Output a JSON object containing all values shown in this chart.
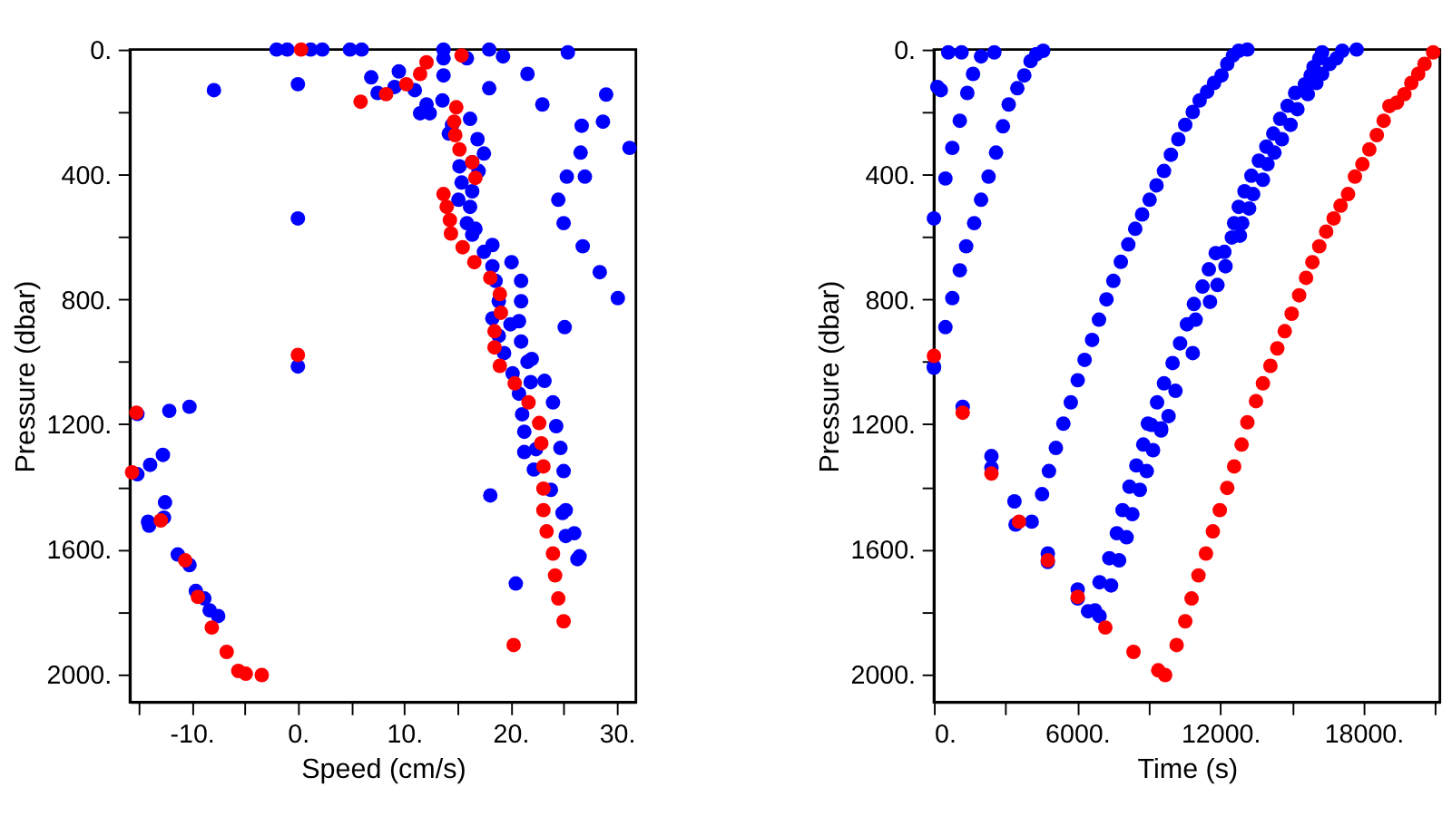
{
  "chart_data": [
    {
      "type": "scatter",
      "xlabel": "Speed (cm/s)",
      "ylabel": "Pressure (dbar)",
      "marker": "circle",
      "grid": false,
      "legend": false,
      "xlim": [
        -15.8,
        31.8
      ],
      "ylim": [
        2090,
        0
      ],
      "xticks": [
        {
          "value": -15,
          "label": null
        },
        {
          "value": -10,
          "label": "-10."
        },
        {
          "value": -5,
          "label": null
        },
        {
          "value": 0,
          "label": "0."
        },
        {
          "value": 5,
          "label": null
        },
        {
          "value": 10,
          "label": "10."
        },
        {
          "value": 15,
          "label": null
        },
        {
          "value": 20,
          "label": "20."
        },
        {
          "value": 25,
          "label": null
        },
        {
          "value": 30,
          "label": "30."
        }
      ],
      "yticks": [
        {
          "value": 0,
          "label": "0."
        },
        {
          "value": 200,
          "label": null
        },
        {
          "value": 400,
          "label": "400."
        },
        {
          "value": 600,
          "label": null
        },
        {
          "value": 800,
          "label": "800."
        },
        {
          "value": 1000,
          "label": null
        },
        {
          "value": 1200,
          "label": "1200."
        },
        {
          "value": 1400,
          "label": null
        },
        {
          "value": 1600,
          "label": "1600."
        },
        {
          "value": 1800,
          "label": null
        },
        {
          "value": 2000,
          "label": "2000."
        }
      ],
      "series": [
        {
          "color": "#0000ff",
          "x": [
            -2.0,
            -1.0,
            1.2,
            2.3,
            4.9,
            6.0,
            13.7,
            13.7,
            15.9,
            18.0,
            19.3,
            25.4,
            21.6,
            23.0,
            18.0,
            -7.9,
            0,
            0,
            0,
            6.9,
            9.5,
            7.5,
            9.1,
            11.0,
            11.5,
            12.4,
            12.1,
            13.7,
            13.6,
            14.5,
            14.2,
            16.2,
            16.9,
            17.5,
            16.4,
            15.2,
            15.4,
            16.4,
            17.0,
            15.1,
            16.2,
            15.9,
            16.7,
            16.4,
            17.5,
            18.3,
            18.3,
            20.1,
            18.6,
            21.0,
            18.9,
            21.0,
            18.3,
            20.8,
            20.0,
            18.9,
            21.0,
            19.4,
            22.0,
            21.6,
            20.2,
            21.9,
            23.2,
            20.8,
            24.0,
            26.7,
            28.7,
            29.0,
            31.2,
            26.6,
            25.3,
            27.0,
            24.5,
            25.0,
            26.8,
            28.4,
            30.1,
            25.1,
            -15.1,
            -12.1,
            -10.2,
            21.1,
            21.3,
            24.3,
            21.3,
            22.4,
            24.7,
            22.2,
            25.0,
            23.8,
            18.1,
            24.9,
            25.2,
            25.2,
            26.0,
            26.3,
            26.5,
            20.5,
            -15.1,
            -13.9,
            -12.7,
            -12.5,
            -12.6,
            -14.1,
            -14.0,
            -11.3,
            -10.2,
            -9.6,
            -8.8,
            -8.3,
            -7.5
          ],
          "values": [
            0,
            0,
            0,
            0,
            0,
            0,
            28,
            0,
            28,
            0,
            22,
            9,
            78,
            176,
            124,
            130,
            111,
            541,
            1015,
            89,
            70,
            139,
            120,
            130,
            204,
            204,
            176,
            83,
            163,
            241,
            269,
            222,
            287,
            333,
            361,
            374,
            426,
            454,
            389,
            481,
            504,
            556,
            574,
            593,
            648,
            626,
            694,
            681,
            741,
            741,
            806,
            806,
            861,
            870,
            880,
            917,
            935,
            972,
            991,
            1000,
            1037,
            1065,
            1061,
            1102,
            1130,
            244,
            231,
            144,
            315,
            330,
            407,
            407,
            481,
            556,
            630,
            713,
            796,
            889,
            1167,
            1157,
            1144,
            1168,
            1224,
            1206,
            1289,
            1280,
            1276,
            1345,
            1350,
            1410,
            1428,
            1484,
            1475,
            1558,
            1549,
            1632,
            1623,
            1710,
            1360,
            1330,
            1298,
            1450,
            1499,
            1512,
            1525,
            1617,
            1651,
            1734,
            1758,
            1796,
            1814
          ]
        },
        {
          "color": "#ff0000",
          "x": [
            0.3,
            15.4,
            12.1,
            11.5,
            10.2,
            8.3,
            5.9,
            14.9,
            14.7,
            14.8,
            15.2,
            16.4,
            16.7,
            13.7,
            14.0,
            14.3,
            14.4,
            15.5,
            16.6,
            18.1,
            19.0,
            19.1,
            18.5,
            18.5,
            19.0,
            20.4,
            21.7,
            0,
            -15.2,
            22.7,
            22.9,
            23.1,
            23.1,
            23.1,
            23.4,
            24.0,
            24.2,
            24.5,
            25.0,
            20.3,
            -15.6,
            -12.9,
            -10.6,
            -9.4,
            -8.1,
            -6.7,
            -5.6,
            -4.9,
            -3.4
          ],
          "values": [
            0,
            19,
            41,
            78,
            111,
            143,
            167,
            185,
            231,
            274,
            320,
            361,
            411,
            463,
            504,
            546,
            589,
            633,
            681,
            731,
            783,
            843,
            902,
            954,
            1013,
            1069,
            1130,
            978,
            1163,
            1196,
            1261,
            1335,
            1406,
            1475,
            1543,
            1614,
            1684,
            1758,
            1831,
            1907,
            1354,
            1508,
            1636,
            1753,
            1851,
            1929,
            1990,
            1999,
            2003
          ]
        }
      ]
    },
    {
      "type": "scatter",
      "xlabel": "Time (s)",
      "ylabel": "Pressure (dbar)",
      "marker": "circle",
      "grid": false,
      "legend": false,
      "xlim": [
        0,
        21200
      ],
      "ylim": [
        2090,
        0
      ],
      "xticks": [
        {
          "value": 0,
          "label": "0."
        },
        {
          "value": 3000,
          "label": null
        },
        {
          "value": 6000,
          "label": "6000."
        },
        {
          "value": 9000,
          "label": null
        },
        {
          "value": 12000,
          "label": "12000."
        },
        {
          "value": 15000,
          "label": null
        },
        {
          "value": 18000,
          "label": "18000."
        },
        {
          "value": 21000,
          "label": null
        }
      ],
      "yticks": [
        {
          "value": 0,
          "label": "0."
        },
        {
          "value": 200,
          "label": null
        },
        {
          "value": 400,
          "label": "400."
        },
        {
          "value": 600,
          "label": null
        },
        {
          "value": 800,
          "label": "800."
        },
        {
          "value": 1000,
          "label": null
        },
        {
          "value": 1200,
          "label": "1200."
        },
        {
          "value": 1400,
          "label": null
        },
        {
          "value": 1600,
          "label": "1600."
        },
        {
          "value": 1800,
          "label": null
        },
        {
          "value": 2000,
          "label": "2000."
        }
      ],
      "series": [
        {
          "color": "#0000ff",
          "x": [
            602,
            1157,
            145,
            289,
            0,
            0,
            0,
            482,
            771,
            1084,
            1398,
            1639,
            1976,
            2530,
            771,
            482,
            1084,
            1350,
            1687,
            1976,
            2290,
            2603,
            2892,
            3133,
            3495,
            3785,
            4049,
            4290,
            4579,
            5423,
            5736,
            6025,
            6314,
            6628,
            6917,
            7230,
            7519,
            7832,
            8145,
            8435,
            8724,
            9037,
            9327,
            9640,
            9929,
            10242,
            10531,
            10845,
            11134,
            11447,
            11737,
            12050,
            12291,
            12532,
            12773,
            13134,
            5110,
            4820,
            4531,
            4097,
            3422,
            3374,
            4772,
            4772,
            6025,
            6025,
            6459,
            6748,
            6941,
            2410,
            2410,
            1205,
            6941,
            7423,
            7350,
            7760,
            7663,
            8073,
            7904,
            8314,
            8194,
            8628,
            8483,
            8917,
            8772,
            9181,
            9110,
            9519,
            9832,
            8965,
            9519,
            9351,
            9640,
            10001,
            10122,
            10314,
            10845,
            10603,
            10966,
            10893,
            11568,
            11255,
            11881,
            11520,
            12218,
            11809,
            12170,
            12483,
            12821,
            12580,
            12917,
            12773,
            13207,
            13014,
            13376,
            13303,
            13785,
            13616,
            13978,
            13930,
            14267,
            14219,
            14581,
            14508,
            14942,
            14821,
            15231,
            15135,
            15665,
            15544,
            16026,
            15786,
            16267,
            15906,
            16580,
            16147,
            16869,
            16267,
            17111,
            17713
          ],
          "values": [
            9,
            9,
            120,
            130,
            541,
            1015,
            1019,
            413,
            315,
            228,
            139,
            78,
            22,
            9,
            796,
            889,
            707,
            630,
            556,
            481,
            407,
            330,
            246,
            176,
            124,
            83,
            37,
            15,
            4,
            1198,
            1130,
            1059,
            994,
            930,
            865,
            800,
            741,
            680,
            624,
            574,
            528,
            481,
            435,
            389,
            337,
            287,
            241,
            200,
            163,
            135,
            107,
            83,
            46,
            19,
            4,
            0,
            1276,
            1350,
            1424,
            1512,
            1521,
            1447,
            1614,
            1641,
            1729,
            1758,
            1799,
            1796,
            1814,
            1302,
            1339,
            1144,
            1706,
            1716,
            1629,
            1636,
            1549,
            1562,
            1475,
            1488,
            1400,
            1410,
            1332,
            1350,
            1265,
            1283,
            1202,
            1220,
            1174,
            1198,
            1213,
            1130,
            1069,
            1004,
            1093,
            941,
            972,
            880,
            865,
            815,
            808,
            759,
            754,
            704,
            694,
            652,
            648,
            602,
            596,
            556,
            556,
            504,
            509,
            454,
            463,
            404,
            417,
            356,
            367,
            311,
            330,
            269,
            287,
            222,
            241,
            180,
            191,
            139,
            143,
            111,
            107,
            83,
            78,
            56,
            46,
            28,
            28,
            9,
            4,
            0
          ]
        },
        {
          "color": "#ff0000",
          "x": [
            0,
            1205,
            13134,
            13496,
            13785,
            14098,
            14388,
            14701,
            14990,
            15304,
            15593,
            15858,
            16147,
            16436,
            16750,
            17039,
            17352,
            17641,
            17954,
            18244,
            18557,
            18846,
            19087,
            19400,
            19714,
            20003,
            20292,
            20557,
            20919,
            2410,
            3567,
            4772,
            6025,
            7182,
            8363,
            9399,
            9688,
            10170,
            10531,
            10796,
            11085,
            11399,
            11688,
            11978,
            12291,
            12580,
            12893
          ],
          "values": [
            981,
            1163,
            1194,
            1126,
            1069,
            1013,
            957,
            902,
            846,
            787,
            731,
            681,
            630,
            583,
            541,
            500,
            463,
            407,
            367,
            320,
            274,
            228,
            181,
            170,
            143,
            107,
            78,
            46,
            9,
            1358,
            1512,
            1636,
            1753,
            1851,
            1929,
            1988,
            2003,
            1907,
            1831,
            1758,
            1684,
            1614,
            1543,
            1475,
            1404,
            1335,
            1265
          ]
        }
      ]
    }
  ]
}
